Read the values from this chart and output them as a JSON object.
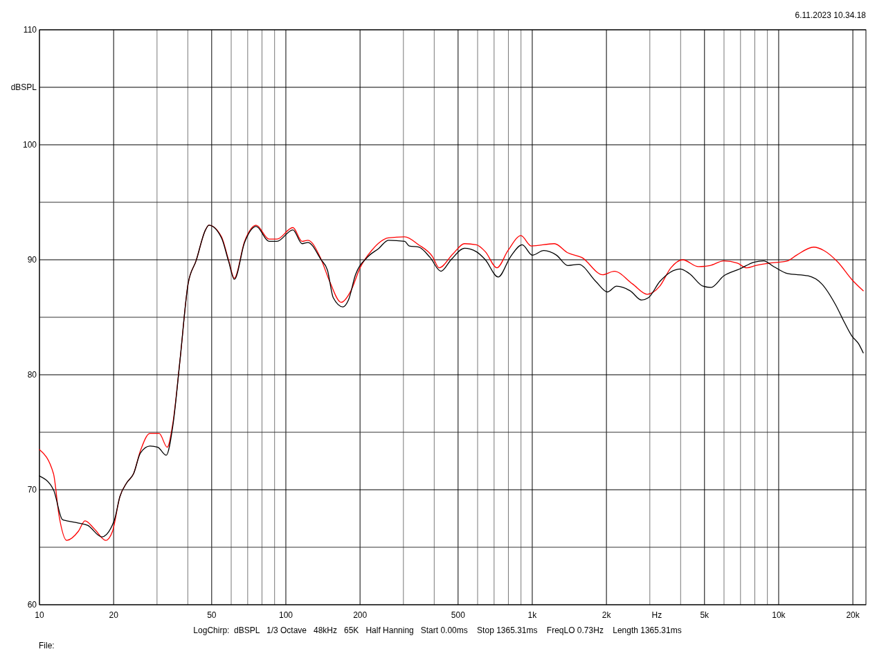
{
  "chart_data": {
    "type": "line",
    "xlabel": "Hz",
    "log": "x",
    "grid": true,
    "annotations": [
      "6.11.2023 10.34.18",
      "LogChirp:  dBSPL   1/3 Octave   48kHz   65K   Half Hanning   Start 0.00ms    Stop 1365.31ms    FreqLO 0.73Hz    Length 1365.31ms",
      "File:"
    ],
    "xlim": [
      10,
      22600
    ],
    "ylim": [
      60,
      110
    ],
    "xticks": [
      10,
      20,
      {
        "value": 30,
        "label": null
      },
      {
        "value": 40,
        "label": null
      },
      50,
      {
        "value": 60,
        "label": null
      },
      {
        "value": 70,
        "label": null
      },
      {
        "value": 80,
        "label": null
      },
      {
        "value": 90,
        "label": null
      },
      100,
      200,
      {
        "value": 300,
        "label": null
      },
      {
        "value": 400,
        "label": null
      },
      500,
      {
        "value": 600,
        "label": null
      },
      {
        "value": 700,
        "label": null
      },
      {
        "value": 800,
        "label": null
      },
      {
        "value": 900,
        "label": null
      },
      {
        "value": 1000,
        "label": "1k"
      },
      {
        "value": 2000,
        "label": "2k"
      },
      {
        "value": 3000,
        "label": null
      },
      {
        "value": 4000,
        "label": null
      },
      {
        "value": 5000,
        "label": "5k"
      },
      {
        "value": 6000,
        "label": null
      },
      {
        "value": 7000,
        "label": null
      },
      {
        "value": 8000,
        "label": null
      },
      {
        "value": 9000,
        "label": null
      },
      {
        "value": 10000,
        "label": "10k"
      },
      {
        "value": 20000,
        "label": "20k"
      }
    ],
    "yticks": [
      60,
      {
        "value": 65,
        "label": null
      },
      70,
      {
        "value": 75,
        "label": null
      },
      80,
      {
        "value": 85,
        "label": null
      },
      90,
      {
        "value": 95,
        "label": null
      },
      100,
      {
        "value": 105,
        "label": "dBSPL"
      },
      110
    ],
    "series": [
      {
        "color": "#ff0000",
        "x": [
          10,
          11.4,
          12.0,
          12.9,
          14.4,
          15.3,
          16.7,
          18.6,
          19.8,
          21.2,
          22.6,
          24.1,
          25.7,
          28.1,
          30.6,
          33.0,
          34.8,
          37.2,
          40.1,
          43.2,
          47.2,
          48.7,
          54.8,
          58.5,
          61.8,
          68,
          75.8,
          85.4,
          92,
          106.8,
          116.4,
          122.9,
          138,
          150.7,
          167.5,
          183.6,
          200,
          222.8,
          260.6,
          303.5,
          346,
          393,
          419,
          476,
          531,
          593,
          645,
          719,
          797,
          900,
          990,
          1229,
          1395,
          1588,
          1931,
          2153,
          2552,
          2928,
          3291,
          3652,
          4074,
          4727,
          5265,
          5985,
          6800,
          7409,
          8063,
          9155,
          10862,
          11821,
          13878,
          15275,
          17374,
          19776,
          22040
        ],
        "values": [
          73.5,
          71.4,
          67.8,
          65.6,
          66.4,
          67.3,
          66.6,
          65.6,
          66.4,
          69.4,
          70.6,
          71.4,
          73.4,
          74.9,
          74.9,
          73.7,
          75.8,
          81.3,
          87.9,
          89.9,
          92.6,
          93.0,
          92.0,
          90.0,
          88.4,
          91.6,
          93.0,
          91.8,
          91.8,
          92.8,
          91.6,
          91.7,
          90.2,
          88.1,
          86.3,
          87.3,
          89.3,
          90.8,
          91.9,
          92.0,
          91.3,
          90.3,
          89.3,
          90.5,
          91.4,
          91.3,
          90.7,
          89.3,
          90.8,
          92.1,
          91.2,
          91.4,
          90.6,
          90.2,
          88.7,
          89.0,
          87.9,
          87.0,
          87.7,
          89.3,
          90.0,
          89.4,
          89.5,
          89.9,
          89.7,
          89.3,
          89.5,
          89.7,
          89.9,
          90.4,
          91.1,
          90.8,
          89.8,
          88.3,
          87.3
        ]
      },
      {
        "color": "#000000",
        "x": [
          10,
          11.4,
          12.4,
          12.9,
          14.4,
          15.7,
          17.9,
          20.1,
          21.2,
          22.6,
          24.1,
          25.7,
          28.1,
          30.2,
          32.7,
          34.8,
          37.2,
          40.1,
          43.2,
          47.2,
          48.7,
          54.8,
          58.5,
          61.8,
          68,
          75.8,
          85.4,
          92,
          106.8,
          116.4,
          122.9,
          139,
          147.5,
          155.7,
          170.5,
          179.5,
          191.7,
          213.8,
          238.6,
          260.6,
          303.5,
          317,
          346,
          385,
          426,
          468,
          531,
          593,
          645,
          727,
          818,
          910,
          1001,
          1114,
          1254,
          1395,
          1544,
          1813,
          2019,
          2198,
          2498,
          2777,
          2961,
          3291,
          3986,
          4342,
          4938,
          5319,
          5985,
          6945,
          7974,
          8689,
          9560,
          10862,
          13163,
          14962,
          17007,
          18539,
          19776,
          21095,
          22040
        ],
        "values": [
          71.2,
          70.0,
          67.4,
          67.3,
          67.1,
          66.9,
          65.9,
          67.3,
          69.4,
          70.6,
          71.4,
          73.2,
          73.8,
          73.7,
          73.0,
          75.6,
          81.3,
          87.9,
          89.9,
          92.6,
          93.0,
          91.9,
          89.9,
          88.3,
          91.5,
          92.9,
          91.6,
          91.6,
          92.6,
          91.4,
          91.5,
          90.0,
          89.1,
          86.7,
          85.9,
          86.5,
          88.7,
          90.2,
          91.0,
          91.7,
          91.6,
          91.2,
          91.1,
          90.2,
          89.0,
          90.0,
          91.0,
          90.7,
          90.0,
          88.5,
          90.3,
          91.3,
          90.4,
          90.8,
          90.4,
          89.5,
          89.6,
          88.1,
          87.2,
          87.7,
          87.3,
          86.5,
          86.7,
          88.1,
          89.2,
          88.8,
          87.7,
          87.6,
          88.6,
          89.2,
          89.8,
          89.9,
          89.4,
          88.8,
          88.6,
          87.9,
          86.1,
          84.5,
          83.4,
          82.7,
          81.9
        ]
      }
    ]
  }
}
